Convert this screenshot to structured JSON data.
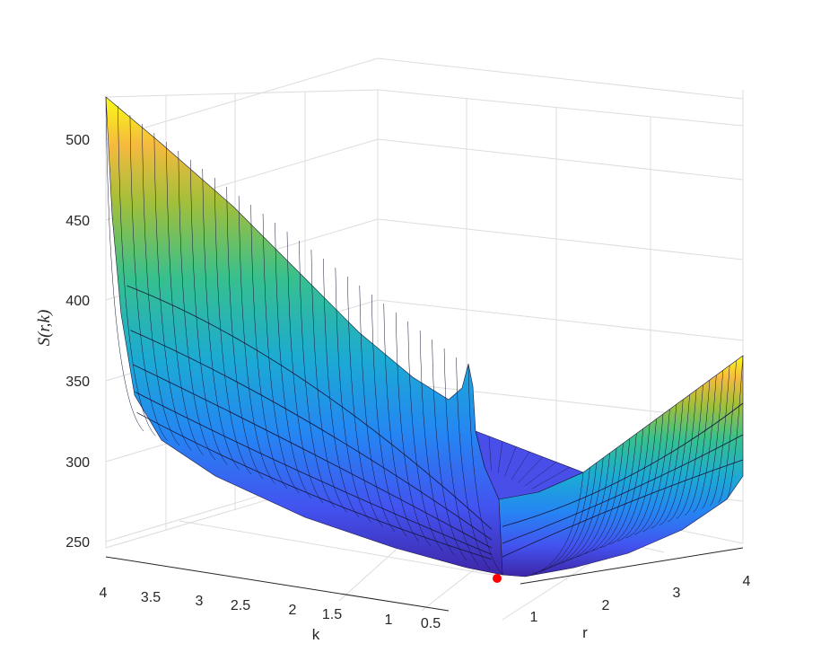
{
  "chart_data": {
    "type": "surface",
    "zlabel": "S(r,k)",
    "xlabel": "r",
    "ylabel": "k",
    "xlim": [
      0,
      4
    ],
    "ylim": [
      0,
      4
    ],
    "zlim": [
      240,
      530
    ],
    "x_ticks": [
      "1",
      "2",
      "3",
      "4"
    ],
    "y_ticks": [
      "4",
      "3.5",
      "3",
      "2.5",
      "2",
      "1.5",
      "1",
      "0.5"
    ],
    "z_ticks": [
      "250",
      "300",
      "350",
      "400",
      "450",
      "500"
    ],
    "grid": true,
    "colormap": "parula",
    "colormap_stops": [
      "#3e26a8",
      "#4353f0",
      "#2487f2",
      "#1caad4",
      "#36c08e",
      "#a3bf3a",
      "#f6ba3e",
      "#f9fb15"
    ],
    "surface_samples": {
      "k_values": [
        4,
        3,
        2,
        1,
        0.05
      ],
      "r_values": [
        0.25,
        0.5,
        1,
        2,
        3,
        4
      ],
      "S_values": [
        [
          505,
          470,
          432,
          410,
          398,
          395
        ],
        [
          440,
          370,
          330,
          318,
          315,
          318
        ],
        [
          400,
          330,
          298,
          290,
          290,
          300
        ],
        [
          370,
          300,
          275,
          268,
          272,
          290
        ],
        [
          360,
          280,
          252,
          255,
          285,
          355
        ]
      ]
    },
    "minimum_marker": {
      "r": 0.45,
      "k": 0.05,
      "S": 242,
      "color": "#ff0000"
    }
  }
}
